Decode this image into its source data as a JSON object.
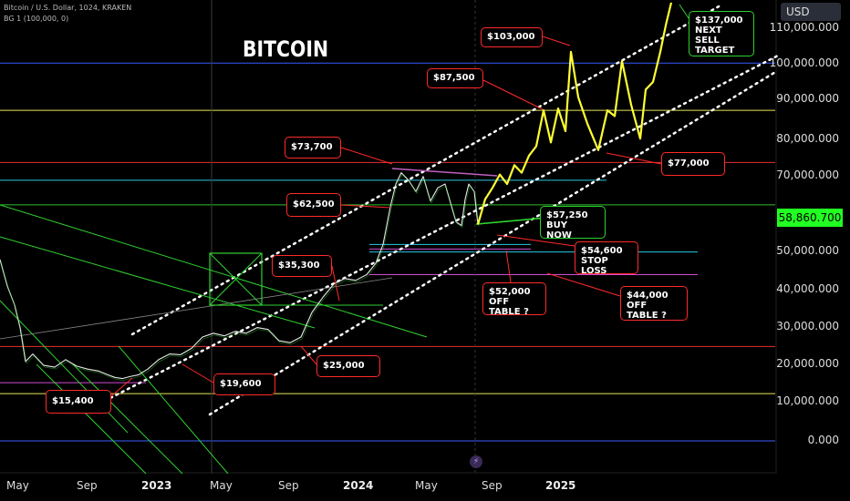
{
  "header": {
    "symbol_line": "Bitcoin / U.S. Dollar, 1024, KRAKEN",
    "indicator_line": "BG 1 (100,000, 0)"
  },
  "chart_title": "BITCOIN",
  "currency_button": "USD",
  "current_price": "58,860.700",
  "colors": {
    "price_line": "#e8e8e8",
    "projection": "#ffff33",
    "callout_border": "#ff2a2a",
    "target_border": "#2fd12f",
    "price_badge": "#22ff22"
  },
  "chart_data": {
    "type": "line",
    "y_axis_labels": [
      "110,000.000",
      "100,000.000",
      "90,000.000",
      "80,000.000",
      "70,000.000",
      "50,000.000",
      "40,000.000",
      "30,000.000",
      "20,000.000",
      "10,000.000",
      "0.000"
    ],
    "x_axis_labels": [
      "May",
      "Sep",
      "2023",
      "May",
      "Sep",
      "2024",
      "May",
      "Sep",
      "2025"
    ],
    "ylim": [
      -5000,
      115000
    ],
    "price_history": [
      [
        0,
        48000
      ],
      [
        8,
        41000
      ],
      [
        16,
        36000
      ],
      [
        22,
        30000
      ],
      [
        28,
        21000
      ],
      [
        36,
        23000
      ],
      [
        48,
        20000
      ],
      [
        60,
        19500
      ],
      [
        72,
        21500
      ],
      [
        84,
        19800
      ],
      [
        96,
        19000
      ],
      [
        108,
        18500
      ],
      [
        118,
        17500
      ],
      [
        126,
        16800
      ],
      [
        134,
        16500
      ],
      [
        142,
        17000
      ],
      [
        152,
        17500
      ],
      [
        162,
        19000
      ],
      [
        174,
        21500
      ],
      [
        186,
        23000
      ],
      [
        198,
        22800
      ],
      [
        210,
        24500
      ],
      [
        222,
        27500
      ],
      [
        234,
        28500
      ],
      [
        246,
        27800
      ],
      [
        258,
        29000
      ],
      [
        270,
        28500
      ],
      [
        282,
        30000
      ],
      [
        294,
        29500
      ],
      [
        306,
        26500
      ],
      [
        318,
        26000
      ],
      [
        330,
        27500
      ],
      [
        342,
        34000
      ],
      [
        354,
        38000
      ],
      [
        366,
        41500
      ],
      [
        378,
        43000
      ],
      [
        390,
        42500
      ],
      [
        402,
        44000
      ],
      [
        412,
        47000
      ],
      [
        420,
        52000
      ],
      [
        428,
        62000
      ],
      [
        434,
        68000
      ],
      [
        440,
        71000
      ],
      [
        448,
        69000
      ],
      [
        456,
        66000
      ],
      [
        464,
        70000
      ],
      [
        472,
        63500
      ],
      [
        480,
        67000
      ],
      [
        488,
        68000
      ],
      [
        494,
        63000
      ],
      [
        500,
        58000
      ],
      [
        506,
        57000
      ],
      [
        510,
        64000
      ],
      [
        514,
        68000
      ],
      [
        520,
        66000
      ],
      [
        524,
        57250
      ]
    ],
    "projection": [
      [
        524,
        57250
      ],
      [
        532,
        64000
      ],
      [
        540,
        67000
      ],
      [
        548,
        70500
      ],
      [
        556,
        68000
      ],
      [
        564,
        73000
      ],
      [
        572,
        71000
      ],
      [
        580,
        75500
      ],
      [
        588,
        78000
      ],
      [
        596,
        87500
      ],
      [
        604,
        79000
      ],
      [
        612,
        88000
      ],
      [
        620,
        82000
      ],
      [
        626,
        103000
      ],
      [
        634,
        91000
      ],
      [
        644,
        84000
      ],
      [
        656,
        77000
      ],
      [
        666,
        87500
      ],
      [
        674,
        86000
      ],
      [
        682,
        100500
      ],
      [
        692,
        89000
      ],
      [
        702,
        80000
      ],
      [
        708,
        93000
      ],
      [
        716,
        95000
      ],
      [
        724,
        103000
      ],
      [
        730,
        110000
      ],
      [
        736,
        116000
      ]
    ],
    "horizontal_levels": [
      {
        "value": 100000,
        "color": "#3b5bff"
      },
      {
        "value": 87500,
        "color": "#e6e65a"
      },
      {
        "value": 73700,
        "color": "#e63030"
      },
      {
        "value": 69000,
        "color": "#28c8e0"
      },
      {
        "value": 62500,
        "color": "#2cbf2c"
      },
      {
        "value": 52000,
        "color": "#28c8e0"
      },
      {
        "value": 50000,
        "color": "#28c8e0"
      },
      {
        "value": 44000,
        "color": "#d34bd3"
      },
      {
        "value": 25000,
        "color": "#e63030"
      },
      {
        "value": 15400,
        "color": "#d34bd3"
      },
      {
        "value": 12500,
        "color": "#e6e65a"
      },
      {
        "value": 0,
        "color": "#3b5bff"
      }
    ],
    "annotations": [
      {
        "text": "$137,000\nNEXT SELL\nTARGET",
        "value": 137000
      },
      {
        "text": "$103,000",
        "value": 103000
      },
      {
        "text": "$87,500",
        "value": 87500
      },
      {
        "text": "$73,700",
        "value": 73700
      },
      {
        "text": "$77,000",
        "value": 77000
      },
      {
        "text": "$62,500",
        "value": 62500
      },
      {
        "text": "$57,250 BUY\nNOW",
        "value": 57250
      },
      {
        "text": "$54,600\nSTOP LOSS",
        "value": 54600
      },
      {
        "text": "$35,300",
        "value": 35300
      },
      {
        "text": "$52,000 OFF\nTABLE ?",
        "value": 52000
      },
      {
        "text": "$44,000 OFF\nTABLE ?",
        "value": 44000
      },
      {
        "text": "$25,000",
        "value": 25000
      },
      {
        "text": "$19,600",
        "value": 19600
      },
      {
        "text": "$15,400",
        "value": 15400
      }
    ]
  }
}
